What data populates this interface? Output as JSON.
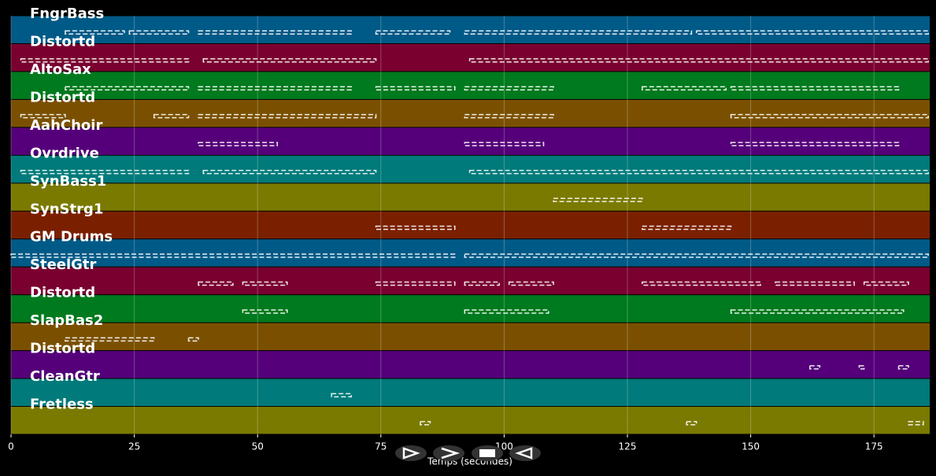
{
  "chart_data": {
    "type": "timeline",
    "x_label": "Temps (secondes)",
    "xlim": [
      0,
      186.3
    ],
    "xticks": [
      0,
      25,
      50,
      75,
      100,
      125,
      150,
      175
    ],
    "grid": true,
    "series": [
      {
        "name": "FngrBass",
        "color": "#005a87",
        "segments": [
          [
            11,
            23
          ],
          [
            24,
            36
          ],
          [
            38,
            69
          ],
          [
            74,
            89
          ],
          [
            92,
            138
          ],
          [
            139,
            186
          ]
        ]
      },
      {
        "name": "Distortd",
        "color": "#7a0030",
        "segments": [
          [
            2,
            36
          ],
          [
            39,
            74
          ],
          [
            93,
            186
          ]
        ]
      },
      {
        "name": "AltoSax",
        "color": "#007a1e",
        "segments": [
          [
            11,
            36
          ],
          [
            38,
            69
          ],
          [
            74,
            90
          ],
          [
            92,
            110
          ],
          [
            128,
            145
          ],
          [
            146,
            180
          ]
        ]
      },
      {
        "name": "Distortd",
        "color": "#7a5000",
        "segments": [
          [
            2,
            11
          ],
          [
            29,
            36
          ],
          [
            38,
            74
          ],
          [
            92,
            110
          ],
          [
            146,
            186
          ]
        ]
      },
      {
        "name": "AahChoir",
        "color": "#55007a",
        "segments": [
          [
            38,
            54
          ],
          [
            92,
            108
          ],
          [
            146,
            180
          ]
        ]
      },
      {
        "name": "Ovrdrive",
        "color": "#007a7a",
        "segments": [
          [
            2,
            36
          ],
          [
            39,
            74
          ],
          [
            93,
            186
          ]
        ]
      },
      {
        "name": "SynBass1",
        "color": "#7a7a00",
        "segments": [
          [
            110,
            128
          ]
        ]
      },
      {
        "name": "SynStrg1",
        "color": "#7a2000",
        "segments": [
          [
            74,
            90
          ],
          [
            128,
            146
          ]
        ]
      },
      {
        "name": "GM Drums",
        "color": "#005a87",
        "segments": [
          [
            0,
            90
          ],
          [
            92,
            186
          ]
        ]
      },
      {
        "name": "SteelGtr",
        "color": "#7a0030",
        "segments": [
          [
            38,
            45
          ],
          [
            47,
            56
          ],
          [
            74,
            90
          ],
          [
            92,
            99
          ],
          [
            101,
            110
          ],
          [
            128,
            152
          ],
          [
            155,
            171
          ],
          [
            173,
            182
          ]
        ]
      },
      {
        "name": "Distortd",
        "color": "#007a1e",
        "segments": [
          [
            47,
            56
          ],
          [
            92,
            109
          ],
          [
            146,
            181
          ]
        ]
      },
      {
        "name": "SlapBas2",
        "color": "#7a5000",
        "segments": [
          [
            11,
            29
          ],
          [
            36,
            38
          ]
        ]
      },
      {
        "name": "Distortd",
        "color": "#55007a",
        "segments": [
          [
            162,
            164
          ],
          [
            172,
            173
          ],
          [
            180,
            182
          ]
        ]
      },
      {
        "name": "CleanGtr",
        "color": "#007a7a",
        "segments": [
          [
            65,
            69
          ]
        ]
      },
      {
        "name": "Fretless",
        "color": "#7a7a00",
        "segments": [
          [
            83,
            85
          ],
          [
            137,
            139
          ],
          [
            182,
            185
          ]
        ]
      }
    ]
  }
}
